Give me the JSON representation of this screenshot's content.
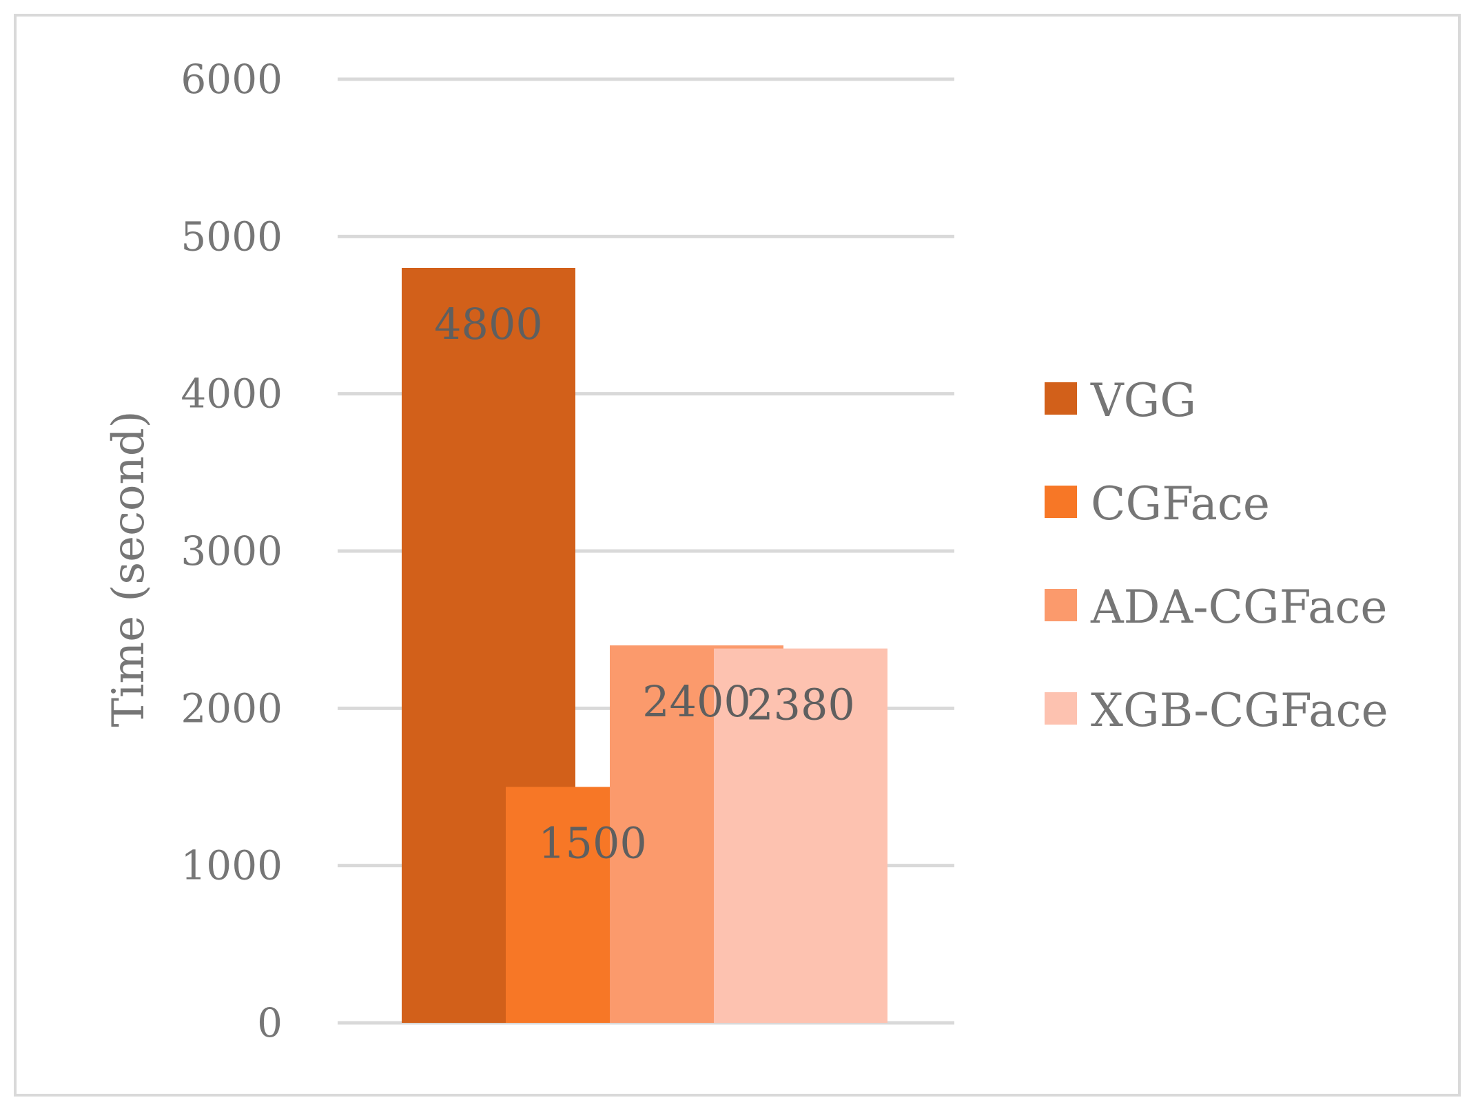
{
  "chart_data": {
    "type": "bar",
    "title": "",
    "ylabel": "Time (second)",
    "xlabel": "",
    "ylim": [
      0,
      6000
    ],
    "yticks": [
      0,
      1000,
      2000,
      3000,
      4000,
      5000,
      6000
    ],
    "grid": true,
    "legend_position": "right",
    "series": [
      {
        "name": "VGG",
        "value": 4800,
        "label": "4800",
        "color": "#d2601a"
      },
      {
        "name": "CGFace",
        "value": 1500,
        "label": "1500",
        "color": "#f77726"
      },
      {
        "name": "ADA-CGFace",
        "value": 2400,
        "label": "2400",
        "color": "#fb9a6c"
      },
      {
        "name": "XGB-CGFace",
        "value": 2380,
        "label": "2380",
        "color": "#fdc2b0"
      }
    ]
  }
}
